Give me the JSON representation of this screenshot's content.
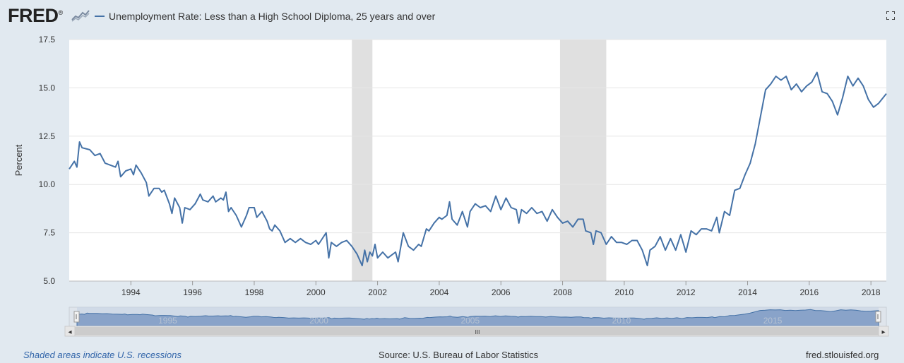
{
  "header": {
    "logo_text": "FRED",
    "logo_trademark": "®",
    "title": "Unemployment Rate: Less than a High School Diploma, 25 years and over"
  },
  "navigator": {
    "labels": [
      "1995",
      "2000",
      "2005",
      "2010",
      "2015"
    ],
    "scroll_grip": "III",
    "left_arrow": "◂",
    "right_arrow": "▸"
  },
  "footer": {
    "recession_note": "Shaded areas indicate U.S. recessions",
    "source": "Source: U.S. Bureau of Labor Statistics",
    "site": "fred.stlouisfed.org"
  },
  "colors": {
    "line": "#4572a7",
    "recession": "#e0e0e0",
    "background": "#e1e9f0",
    "plot": "#ffffff"
  },
  "chart_data": {
    "type": "line",
    "title": "Unemployment Rate: Less than a High School Diploma, 25 years and over",
    "ylabel": "Percent",
    "xlabel": "",
    "ylim": [
      5.0,
      17.5
    ],
    "xlim": [
      "1992-01",
      "2018-07"
    ],
    "yticks": [
      "5.0",
      "7.5",
      "10.0",
      "12.5",
      "15.0",
      "17.5"
    ],
    "xticks": [
      "1994",
      "1996",
      "1998",
      "2000",
      "2002",
      "2004",
      "2006",
      "2008",
      "2010",
      "2012",
      "2014",
      "2016",
      "2018"
    ],
    "grid": true,
    "recessions": [
      [
        "2001-03",
        "2001-11"
      ],
      [
        "2007-12",
        "2009-06"
      ]
    ],
    "series": [
      {
        "values": [
          [
            "1992-01",
            10.8
          ],
          [
            "1992-03",
            11.2
          ],
          [
            "1992-04",
            10.9
          ],
          [
            "1992-05",
            12.2
          ],
          [
            "1992-06",
            11.9
          ],
          [
            "1992-09",
            11.8
          ],
          [
            "1992-11",
            11.5
          ],
          [
            "1993-01",
            11.6
          ],
          [
            "1993-03",
            11.1
          ],
          [
            "1993-05",
            11.0
          ],
          [
            "1993-07",
            10.9
          ],
          [
            "1993-08",
            11.2
          ],
          [
            "1993-09",
            10.4
          ],
          [
            "1993-11",
            10.7
          ],
          [
            "1994-01",
            10.8
          ],
          [
            "1994-02",
            10.5
          ],
          [
            "1994-03",
            11.0
          ],
          [
            "1994-05",
            10.6
          ],
          [
            "1994-07",
            10.1
          ],
          [
            "1994-08",
            9.4
          ],
          [
            "1994-10",
            9.8
          ],
          [
            "1994-12",
            9.8
          ],
          [
            "1995-01",
            9.6
          ],
          [
            "1995-02",
            9.7
          ],
          [
            "1995-04",
            9.0
          ],
          [
            "1995-05",
            8.5
          ],
          [
            "1995-06",
            9.3
          ],
          [
            "1995-08",
            8.8
          ],
          [
            "1995-09",
            8.0
          ],
          [
            "1995-10",
            8.8
          ],
          [
            "1995-12",
            8.7
          ],
          [
            "1996-02",
            9.0
          ],
          [
            "1996-04",
            9.5
          ],
          [
            "1996-05",
            9.2
          ],
          [
            "1996-07",
            9.1
          ],
          [
            "1996-09",
            9.4
          ],
          [
            "1996-10",
            9.1
          ],
          [
            "1996-12",
            9.3
          ],
          [
            "1997-01",
            9.2
          ],
          [
            "1997-02",
            9.6
          ],
          [
            "1997-03",
            8.6
          ],
          [
            "1997-04",
            8.8
          ],
          [
            "1997-06",
            8.4
          ],
          [
            "1997-08",
            7.8
          ],
          [
            "1997-10",
            8.4
          ],
          [
            "1997-11",
            8.8
          ],
          [
            "1998-01",
            8.8
          ],
          [
            "1998-02",
            8.3
          ],
          [
            "1998-04",
            8.6
          ],
          [
            "1998-06",
            8.1
          ],
          [
            "1998-07",
            7.7
          ],
          [
            "1998-08",
            7.6
          ],
          [
            "1998-09",
            7.9
          ],
          [
            "1998-11",
            7.6
          ],
          [
            "1999-01",
            7.0
          ],
          [
            "1999-03",
            7.2
          ],
          [
            "1999-05",
            7.0
          ],
          [
            "1999-07",
            7.2
          ],
          [
            "1999-09",
            7.0
          ],
          [
            "1999-11",
            6.9
          ],
          [
            "2000-01",
            7.1
          ],
          [
            "2000-02",
            6.9
          ],
          [
            "2000-03",
            7.1
          ],
          [
            "2000-05",
            7.5
          ],
          [
            "2000-06",
            6.2
          ],
          [
            "2000-07",
            7.0
          ],
          [
            "2000-09",
            6.8
          ],
          [
            "2000-11",
            7.0
          ],
          [
            "2001-01",
            7.1
          ],
          [
            "2001-03",
            6.8
          ],
          [
            "2001-05",
            6.4
          ],
          [
            "2001-07",
            5.8
          ],
          [
            "2001-08",
            6.6
          ],
          [
            "2001-09",
            6.0
          ],
          [
            "2001-10",
            6.5
          ],
          [
            "2001-11",
            6.3
          ],
          [
            "2001-12",
            6.9
          ],
          [
            "2002-01",
            6.2
          ],
          [
            "2002-03",
            6.5
          ],
          [
            "2002-05",
            6.2
          ],
          [
            "2002-06",
            6.3
          ],
          [
            "2002-08",
            6.5
          ],
          [
            "2002-09",
            6.0
          ],
          [
            "2002-11",
            7.5
          ],
          [
            "2003-01",
            6.8
          ],
          [
            "2003-03",
            6.6
          ],
          [
            "2003-05",
            6.9
          ],
          [
            "2003-06",
            6.8
          ],
          [
            "2003-08",
            7.7
          ],
          [
            "2003-09",
            7.6
          ],
          [
            "2003-11",
            8.0
          ],
          [
            "2004-01",
            8.3
          ],
          [
            "2004-02",
            8.2
          ],
          [
            "2004-04",
            8.4
          ],
          [
            "2004-05",
            9.1
          ],
          [
            "2004-06",
            8.2
          ],
          [
            "2004-08",
            7.9
          ],
          [
            "2004-10",
            8.6
          ],
          [
            "2004-12",
            7.8
          ],
          [
            "2005-01",
            8.6
          ],
          [
            "2005-03",
            9.0
          ],
          [
            "2005-05",
            8.8
          ],
          [
            "2005-07",
            8.9
          ],
          [
            "2005-09",
            8.6
          ],
          [
            "2005-11",
            9.4
          ],
          [
            "2006-01",
            8.7
          ],
          [
            "2006-03",
            9.3
          ],
          [
            "2006-05",
            8.8
          ],
          [
            "2006-07",
            8.7
          ],
          [
            "2006-08",
            8.0
          ],
          [
            "2006-09",
            8.7
          ],
          [
            "2006-11",
            8.5
          ],
          [
            "2007-01",
            8.8
          ],
          [
            "2007-03",
            8.5
          ],
          [
            "2007-05",
            8.6
          ],
          [
            "2007-07",
            8.1
          ],
          [
            "2007-09",
            8.7
          ],
          [
            "2007-11",
            8.3
          ],
          [
            "2008-01",
            8.0
          ],
          [
            "2008-03",
            8.1
          ],
          [
            "2008-05",
            7.8
          ],
          [
            "2008-07",
            8.2
          ],
          [
            "2008-09",
            8.2
          ],
          [
            "2008-10",
            7.6
          ],
          [
            "2008-12",
            7.5
          ],
          [
            "2009-01",
            6.9
          ],
          [
            "2009-02",
            7.6
          ],
          [
            "2009-04",
            7.5
          ],
          [
            "2009-06",
            6.9
          ],
          [
            "2009-08",
            7.3
          ],
          [
            "2009-10",
            7.0
          ],
          [
            "2009-12",
            7.0
          ],
          [
            "2010-02",
            6.9
          ],
          [
            "2010-04",
            7.1
          ],
          [
            "2010-06",
            7.1
          ],
          [
            "2010-08",
            6.6
          ],
          [
            "2010-10",
            5.8
          ],
          [
            "2010-11",
            6.6
          ],
          [
            "2011-01",
            6.8
          ],
          [
            "2011-03",
            7.3
          ],
          [
            "2011-05",
            6.6
          ],
          [
            "2011-07",
            7.2
          ],
          [
            "2011-09",
            6.6
          ],
          [
            "2011-11",
            7.4
          ],
          [
            "2012-01",
            6.5
          ],
          [
            "2012-03",
            7.6
          ],
          [
            "2012-05",
            7.4
          ],
          [
            "2012-07",
            7.7
          ],
          [
            "2012-09",
            7.7
          ],
          [
            "2012-11",
            7.6
          ],
          [
            "2013-01",
            8.3
          ],
          [
            "2013-02",
            7.5
          ],
          [
            "2013-04",
            8.6
          ],
          [
            "2013-06",
            8.4
          ],
          [
            "2013-08",
            9.7
          ],
          [
            "2013-10",
            9.8
          ],
          [
            "2013-12",
            10.5
          ],
          [
            "2014-02",
            11.1
          ],
          [
            "2014-04",
            12.1
          ],
          [
            "2014-06",
            13.5
          ],
          [
            "2014-08",
            14.9
          ],
          [
            "2014-10",
            15.2
          ],
          [
            "2014-12",
            15.6
          ],
          [
            "2015-02",
            15.4
          ],
          [
            "2015-04",
            15.6
          ],
          [
            "2015-06",
            14.9
          ],
          [
            "2015-08",
            15.2
          ],
          [
            "2015-10",
            14.8
          ],
          [
            "2015-12",
            15.1
          ],
          [
            "2016-02",
            15.3
          ],
          [
            "2016-04",
            15.8
          ],
          [
            "2016-06",
            14.8
          ],
          [
            "2016-08",
            14.7
          ],
          [
            "2016-10",
            14.3
          ],
          [
            "2016-12",
            13.6
          ],
          [
            "2017-02",
            14.5
          ],
          [
            "2017-04",
            15.6
          ],
          [
            "2017-06",
            15.1
          ],
          [
            "2017-08",
            15.5
          ],
          [
            "2017-10",
            15.1
          ],
          [
            "2017-12",
            14.4
          ],
          [
            "2018-02",
            14.0
          ],
          [
            "2018-04",
            14.2
          ],
          [
            "2018-07",
            14.7
          ]
        ]
      }
    ]
  }
}
